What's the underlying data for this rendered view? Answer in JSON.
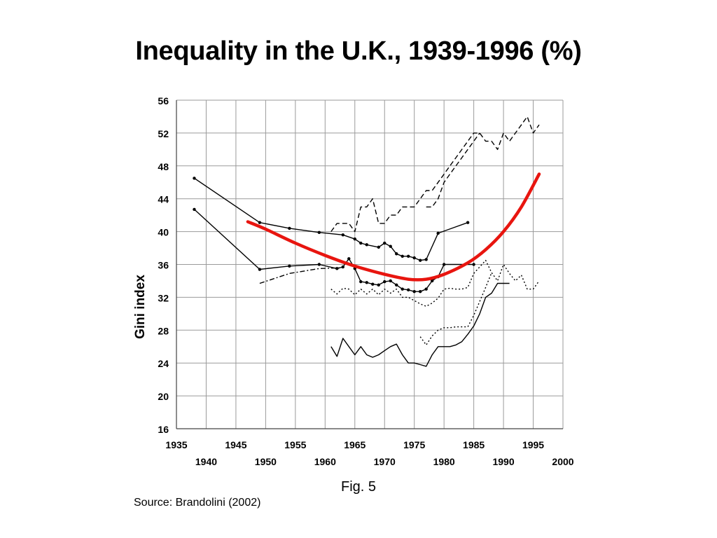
{
  "slide": {
    "title": "Inequality in the U.K., 1939-1996 (%)",
    "caption": "Fig. 5",
    "source": "Source: Brandolini (2002)"
  },
  "chart_data": {
    "type": "line",
    "ylabel": "Gini index",
    "xlim": [
      1935,
      2000
    ],
    "ylim": [
      16,
      56
    ],
    "y_ticks": [
      16,
      20,
      24,
      28,
      32,
      36,
      40,
      44,
      48,
      52,
      56
    ],
    "x_ticks_row1": [
      1935,
      1945,
      1955,
      1965,
      1975,
      1985,
      1995
    ],
    "x_ticks_row2": [
      1940,
      1950,
      1960,
      1970,
      1980,
      1990,
      2000
    ],
    "grid": true,
    "colors": {
      "trend": "#e8150f",
      "series": "#000000",
      "grid": "#9a9a9a"
    },
    "trend": {
      "x": [
        1947,
        1950,
        1955,
        1960,
        1965,
        1970,
        1974,
        1977,
        1980,
        1984,
        1987,
        1990,
        1993,
        1996
      ],
      "y": [
        41.2,
        40.3,
        38.6,
        37.1,
        35.8,
        34.8,
        34.2,
        34.2,
        34.8,
        36.2,
        37.8,
        40.0,
        43.0,
        47.0
      ]
    },
    "series": [
      {
        "style": "solid-dot",
        "x": [
          1938,
          1949,
          1954,
          1959,
          1963,
          1965,
          1966,
          1967,
          1969,
          1970,
          1971,
          1972,
          1973,
          1974,
          1975,
          1976,
          1977,
          1979,
          1984
        ],
        "y": [
          46.5,
          41.1,
          40.4,
          39.9,
          39.6,
          39.1,
          38.6,
          38.4,
          38.1,
          38.6,
          38.2,
          37.3,
          37.0,
          37.0,
          36.8,
          36.5,
          36.6,
          39.8,
          41.1
        ]
      },
      {
        "style": "solid-dot",
        "x": [
          1938,
          1949,
          1954,
          1959,
          1962,
          1963,
          1964,
          1965,
          1966,
          1967,
          1968,
          1969,
          1970,
          1971,
          1972,
          1973,
          1974,
          1975,
          1976,
          1977,
          1978,
          1979,
          1980,
          1985
        ],
        "y": [
          42.7,
          35.4,
          35.8,
          36.0,
          35.5,
          35.7,
          36.7,
          35.5,
          33.9,
          33.8,
          33.6,
          33.5,
          33.9,
          34.0,
          33.5,
          33.0,
          32.9,
          32.7,
          32.7,
          33.0,
          34.0,
          34.5,
          36.0,
          36.0
        ]
      },
      {
        "style": "dash-dot",
        "x": [
          1949,
          1954,
          1959,
          1963
        ],
        "y": [
          33.7,
          34.9,
          35.5,
          35.6
        ]
      },
      {
        "style": "dashed",
        "x": [
          1961,
          1962,
          1963,
          1964,
          1965,
          1966,
          1967,
          1968,
          1969,
          1970,
          1971,
          1972,
          1973,
          1974,
          1975,
          1976,
          1977,
          1978,
          1979,
          1980,
          1981,
          1982,
          1983,
          1984,
          1985,
          1986,
          1987,
          1988,
          1989,
          1990,
          1991,
          1992,
          1993,
          1994,
          1995,
          1996
        ],
        "y": [
          40.0,
          41.0,
          41.0,
          41.0,
          40.0,
          43.0,
          43.0,
          44.0,
          41.0,
          41.0,
          42.0,
          42.0,
          43.0,
          43.0,
          43.0,
          44.0,
          45.0,
          45.0,
          46.0,
          47.0,
          48.0,
          49.0,
          50.0,
          51.0,
          52.0,
          52.0,
          51.0,
          51.0,
          50.0,
          52.0,
          51.0,
          52.0,
          53.0,
          54.0,
          52.0,
          53.0
        ]
      },
      {
        "style": "dashed",
        "x": [
          1977,
          1978,
          1979,
          1980,
          1981,
          1982,
          1983,
          1984,
          1985,
          1986
        ],
        "y": [
          43.0,
          43.0,
          44.0,
          46.0,
          47.0,
          48.0,
          49.0,
          50.0,
          51.0,
          52.0
        ]
      },
      {
        "style": "dotted",
        "x": [
          1961,
          1962,
          1963,
          1964,
          1965,
          1966,
          1967,
          1968,
          1969,
          1970,
          1971,
          1972,
          1973,
          1974,
          1975,
          1976,
          1977,
          1978,
          1979,
          1980,
          1981,
          1982,
          1983,
          1984,
          1985,
          1986,
          1987,
          1988,
          1989,
          1990,
          1991,
          1992,
          1993,
          1994,
          1995,
          1996
        ],
        "y": [
          33.0,
          32.4,
          33.1,
          33.0,
          32.3,
          33.0,
          32.4,
          33.0,
          32.3,
          33.0,
          32.5,
          33.0,
          32.0,
          32.0,
          31.6,
          31.2,
          30.9,
          31.3,
          31.9,
          33.0,
          33.1,
          33.0,
          33.0,
          33.2,
          34.9,
          35.7,
          36.5,
          35.0,
          34.0,
          36.0,
          34.9,
          34.0,
          34.7,
          33.0,
          33.0,
          34.0
        ]
      },
      {
        "style": "dotted",
        "x": [
          1976,
          1977,
          1978,
          1979,
          1980,
          1981,
          1982,
          1983,
          1984,
          1985,
          1986,
          1987,
          1988
        ],
        "y": [
          27.2,
          26.2,
          27.3,
          28.0,
          28.3,
          28.3,
          28.4,
          28.4,
          28.4,
          29.8,
          31.5,
          33.2,
          35.0
        ]
      },
      {
        "style": "solid",
        "x": [
          1961,
          1962,
          1963,
          1964,
          1965,
          1966,
          1967,
          1968,
          1969,
          1970,
          1971,
          1972,
          1973,
          1974,
          1975,
          1976,
          1977,
          1978,
          1979,
          1980,
          1981,
          1982,
          1983,
          1984,
          1985,
          1986,
          1987,
          1988,
          1989,
          1990,
          1991
        ],
        "y": [
          26.0,
          24.8,
          27.0,
          26.0,
          25.0,
          26.0,
          25.0,
          24.7,
          25.0,
          25.5,
          26.0,
          26.3,
          25.0,
          24.0,
          24.0,
          23.8,
          23.6,
          25.0,
          26.0,
          26.0,
          26.0,
          26.2,
          26.6,
          27.5,
          28.5,
          30.0,
          32.0,
          32.5,
          33.7,
          33.7,
          33.7
        ]
      }
    ]
  }
}
